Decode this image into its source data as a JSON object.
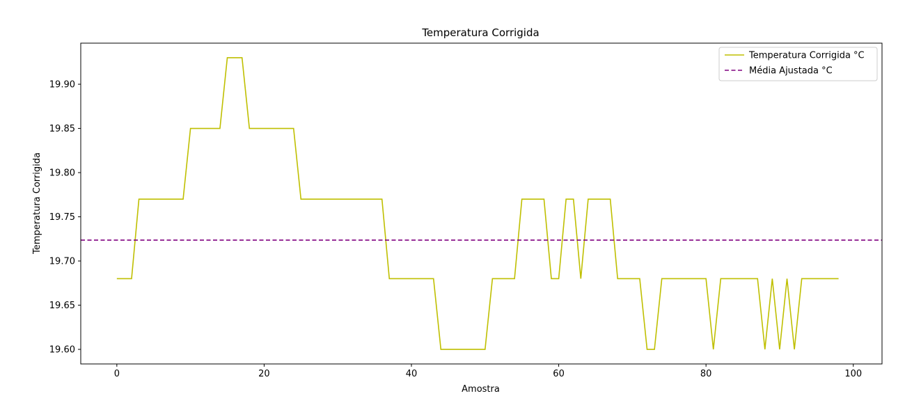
{
  "chart_data": {
    "type": "line",
    "title": "Temperatura Corrigida",
    "xlabel": "Amostra",
    "ylabel": "Temperatura Corrigida",
    "xlim": [
      -4.9,
      103.9
    ],
    "ylim": [
      19.5835,
      19.9465
    ],
    "x_ticks": [
      0,
      20,
      40,
      60,
      80,
      100
    ],
    "y_ticks": [
      19.6,
      19.65,
      19.7,
      19.75,
      19.8,
      19.85,
      19.9
    ],
    "y_tick_labels": [
      "19.60",
      "19.65",
      "19.70",
      "19.75",
      "19.80",
      "19.85",
      "19.90"
    ],
    "grid": false,
    "legend_position": "top-right",
    "series": [
      {
        "name": "Temperatura Corrigida °C",
        "color": "#bfbf00",
        "style": "solid",
        "x": [
          0,
          1,
          2,
          3,
          4,
          5,
          6,
          7,
          8,
          9,
          10,
          11,
          12,
          13,
          14,
          15,
          16,
          17,
          18,
          19,
          20,
          21,
          22,
          23,
          24,
          25,
          26,
          27,
          28,
          29,
          30,
          31,
          32,
          33,
          34,
          35,
          36,
          37,
          38,
          39,
          40,
          41,
          42,
          43,
          44,
          45,
          46,
          47,
          48,
          49,
          50,
          51,
          52,
          53,
          54,
          55,
          56,
          57,
          58,
          59,
          60,
          61,
          62,
          63,
          64,
          65,
          66,
          67,
          68,
          69,
          70,
          71,
          72,
          73,
          74,
          75,
          76,
          77,
          78,
          79,
          80,
          81,
          82,
          83,
          84,
          85,
          86,
          87,
          88,
          89,
          90,
          91,
          92,
          93,
          94,
          95,
          96,
          97,
          98
        ],
        "y": [
          19.68,
          19.68,
          19.68,
          19.77,
          19.77,
          19.77,
          19.77,
          19.77,
          19.77,
          19.77,
          19.85,
          19.85,
          19.85,
          19.85,
          19.85,
          19.93,
          19.93,
          19.93,
          19.85,
          19.85,
          19.85,
          19.85,
          19.85,
          19.85,
          19.85,
          19.77,
          19.77,
          19.77,
          19.77,
          19.77,
          19.77,
          19.77,
          19.77,
          19.77,
          19.77,
          19.77,
          19.77,
          19.68,
          19.68,
          19.68,
          19.68,
          19.68,
          19.68,
          19.68,
          19.6,
          19.6,
          19.6,
          19.6,
          19.6,
          19.6,
          19.6,
          19.68,
          19.68,
          19.68,
          19.68,
          19.77,
          19.77,
          19.77,
          19.77,
          19.68,
          19.68,
          19.77,
          19.77,
          19.68,
          19.77,
          19.77,
          19.77,
          19.77,
          19.68,
          19.68,
          19.68,
          19.68,
          19.6,
          19.6,
          19.68,
          19.68,
          19.68,
          19.68,
          19.68,
          19.68,
          19.68,
          19.6,
          19.68,
          19.68,
          19.68,
          19.68,
          19.68,
          19.68,
          19.6,
          19.68,
          19.6,
          19.68,
          19.6,
          19.68,
          19.68,
          19.68,
          19.68,
          19.68,
          19.68
        ]
      },
      {
        "name": "Média Ajustada °C",
        "color": "#800080",
        "style": "dashed",
        "y_constant": 19.7236
      }
    ]
  }
}
